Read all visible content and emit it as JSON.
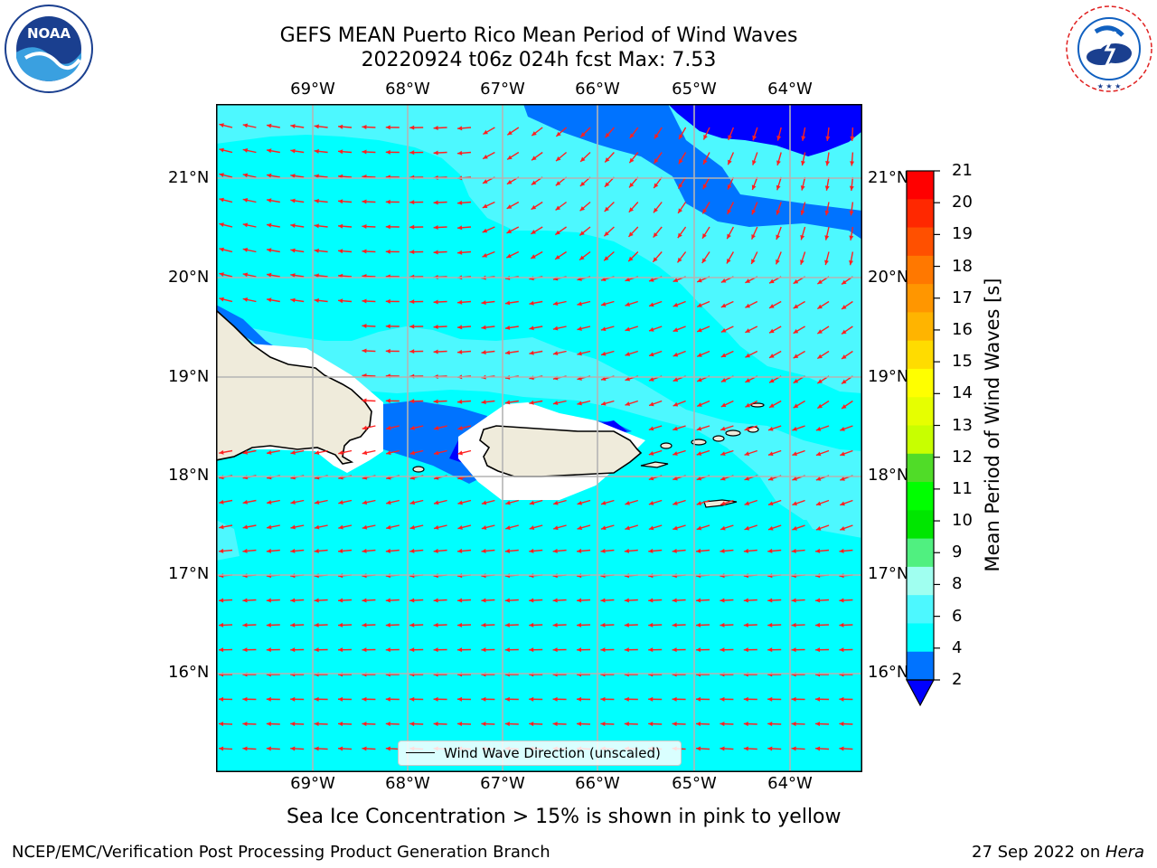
{
  "header": {
    "title_line1": "GEFS MEAN Puerto Rico Mean Period of Wind Waves",
    "title_line2": "20220924 t06z 024h fcst   Max: 7.53"
  },
  "logos": {
    "noaa": "NOAA",
    "noaa_ring": "NATIONAL OCEANIC AND ATMOSPHERIC ADMINISTRATION · U.S. DEPARTMENT OF COMMERCE",
    "nws_ring": "NATIONAL WEATHER SERVICE"
  },
  "map": {
    "lon_ticks": [
      "69°W",
      "68°W",
      "67°W",
      "66°W",
      "65°W",
      "64°W"
    ],
    "lat_ticks": [
      "21°N",
      "20°N",
      "19°N",
      "18°N",
      "17°N",
      "16°N"
    ],
    "legend_label": "Wind Wave Direction (unscaled)",
    "colors": {
      "ocean_4_6": "#00ffff",
      "ocean_6_8": "#4df8ff",
      "ocean_2_4": "#0073ff",
      "ocean_lt2": "#0000ff",
      "land": "#efebdb",
      "arrows": "#ff2020",
      "grid": "#b4b4b4"
    }
  },
  "colorbar": {
    "label": "Mean Period of Wind Waves [s]",
    "ticks": [
      "21",
      "20",
      "19",
      "18",
      "17",
      "16",
      "15",
      "14",
      "13",
      "12",
      "11",
      "10",
      "9",
      "8",
      "6",
      "4",
      "2"
    ],
    "colors": [
      "#ff0000",
      "#ff2800",
      "#ff5000",
      "#ff7800",
      "#ff9600",
      "#ffb400",
      "#ffdc00",
      "#ffff00",
      "#e6ff00",
      "#c8ff00",
      "#50dc28",
      "#00ff00",
      "#00e600",
      "#50f080",
      "#a0fff0",
      "#4df8ff",
      "#00ffff",
      "#0073ff"
    ],
    "extend_color": "#0000ff"
  },
  "notes": {
    "sea_ice": "Sea Ice Concentration > 15% is shown in pink to yellow"
  },
  "footer": {
    "left": "NCEP/EMC/Verification Post Processing Product Generation Branch",
    "right_date": "27 Sep 2022 on ",
    "right_host": "Hera"
  }
}
